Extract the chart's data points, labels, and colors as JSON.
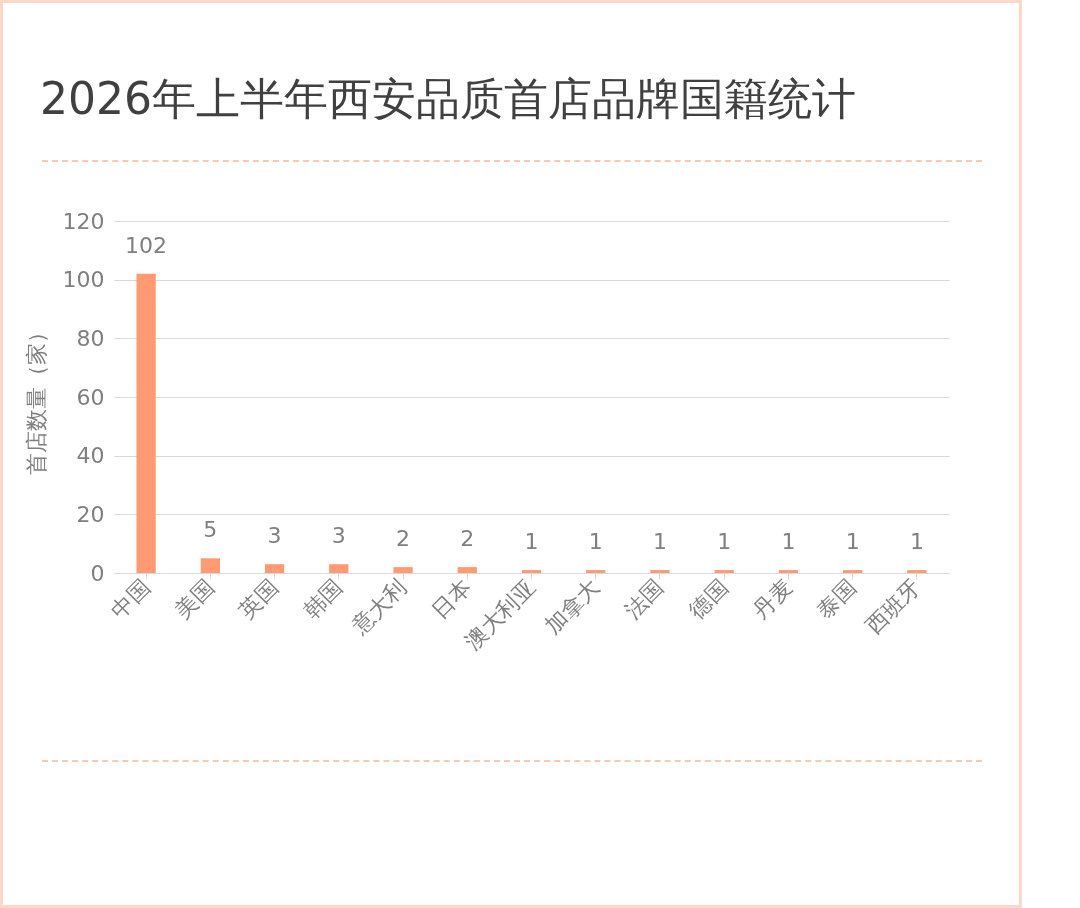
{
  "chart_data": {
    "type": "bar",
    "title": "2026年上半年西安品质首店品牌国籍统计",
    "ylabel": "首店数量（家）",
    "categories": [
      "中国",
      "美国",
      "英国",
      "韩国",
      "意大利",
      "日本",
      "澳大利亚",
      "加拿大",
      "法国",
      "德国",
      "丹麦",
      "泰国",
      "西班牙"
    ],
    "values": [
      102,
      5,
      3,
      3,
      2,
      2,
      1,
      1,
      1,
      1,
      1,
      1,
      1
    ],
    "color": "#ff9a73",
    "ylim": [
      0,
      120
    ],
    "yticks": [
      0,
      20,
      40,
      60,
      80,
      100,
      120
    ],
    "grid": "y",
    "data_labels": true
  }
}
